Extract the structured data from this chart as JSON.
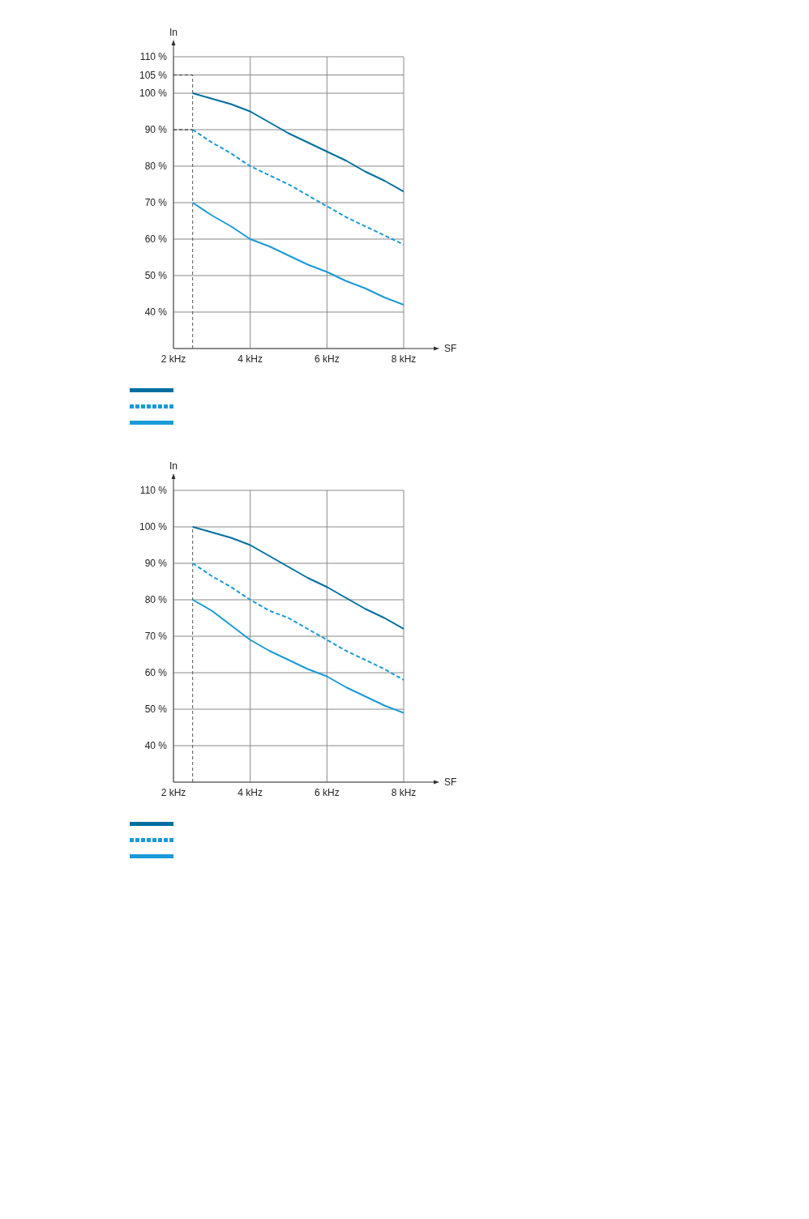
{
  "chart_data": [
    {
      "type": "line",
      "xlabel": "SF",
      "ylabel": "In",
      "x": [
        2.5,
        3,
        3.5,
        4,
        4.5,
        5,
        5.5,
        6,
        6.5,
        7,
        7.5,
        8
      ],
      "series": [
        {
          "color": "#006fa0",
          "line_style": "solid",
          "values": [
            100,
            98.5,
            97,
            95,
            92,
            89,
            86.5,
            84,
            81.5,
            78.5,
            76,
            73
          ]
        },
        {
          "color": "#1a9ad8",
          "line_style": "dashed",
          "values": [
            90,
            86.5,
            83.5,
            80,
            77.5,
            75,
            72,
            69,
            66,
            63.5,
            61,
            58.5
          ]
        },
        {
          "color": "#1a9ad8",
          "line_style": "solid",
          "values": [
            70,
            66.5,
            63.5,
            60,
            58,
            55.5,
            53,
            51,
            48.5,
            46.5,
            44,
            42
          ]
        }
      ],
      "xlim": [
        2,
        8
      ],
      "xticks": [
        {
          "value": 2,
          "label": "2 kHz"
        },
        {
          "value": 4,
          "label": "4 kHz"
        },
        {
          "value": 6,
          "label": "6 kHz"
        },
        {
          "value": 8,
          "label": "8 kHz"
        }
      ],
      "ylim": [
        30,
        110
      ],
      "yticks": [
        {
          "value": 40,
          "label": "40 %"
        },
        {
          "value": 50,
          "label": "50 %"
        },
        {
          "value": 60,
          "label": "60 %"
        },
        {
          "value": 70,
          "label": "70 %"
        },
        {
          "value": 80,
          "label": "80 %"
        },
        {
          "value": 90,
          "label": "90 %"
        },
        {
          "value": 100,
          "label": "100 %"
        },
        {
          "value": 105,
          "label": "105 %"
        },
        {
          "value": 110,
          "label": "110 %"
        }
      ],
      "ref_lines": [
        {
          "axis": "x",
          "value": 2.5,
          "color": "#555555",
          "line_style": "dashed"
        },
        {
          "axis": "y",
          "value": 105,
          "color": "#555555",
          "line_style": "dashed"
        },
        {
          "axis": "y",
          "value": 90,
          "color": "#555555",
          "line_style": "dashed"
        }
      ],
      "grid": true
    },
    {
      "type": "line",
      "xlabel": "SF",
      "ylabel": "In",
      "x": [
        2.5,
        3,
        3.5,
        4,
        4.5,
        5,
        5.5,
        6,
        6.5,
        7,
        7.5,
        8
      ],
      "series": [
        {
          "color": "#006fa0",
          "line_style": "solid",
          "values": [
            100,
            98.5,
            97,
            95,
            92,
            89,
            86,
            83.5,
            80.5,
            77.5,
            75,
            72
          ]
        },
        {
          "color": "#1a9ad8",
          "line_style": "dashed",
          "values": [
            90,
            86.5,
            83.5,
            80,
            77,
            75,
            72,
            69,
            66,
            63.5,
            61,
            58
          ]
        },
        {
          "color": "#1a9ad8",
          "line_style": "solid",
          "values": [
            80,
            77,
            73,
            69,
            66,
            63.5,
            61,
            59,
            56,
            53.5,
            51,
            49
          ]
        }
      ],
      "xlim": [
        2,
        8
      ],
      "xticks": [
        {
          "value": 2,
          "label": "2 kHz"
        },
        {
          "value": 4,
          "label": "4 kHz"
        },
        {
          "value": 6,
          "label": "6 kHz"
        },
        {
          "value": 8,
          "label": "8 kHz"
        }
      ],
      "ylim": [
        30,
        110
      ],
      "yticks": [
        {
          "value": 40,
          "label": "40 %"
        },
        {
          "value": 50,
          "label": "50 %"
        },
        {
          "value": 60,
          "label": "60 %"
        },
        {
          "value": 70,
          "label": "70 %"
        },
        {
          "value": 80,
          "label": "80 %"
        },
        {
          "value": 90,
          "label": "90 %"
        },
        {
          "value": 100,
          "label": "100 %"
        },
        {
          "value": 110,
          "label": "110 %"
        }
      ],
      "ref_lines": [
        {
          "axis": "x",
          "value": 2.5,
          "color": "#555555",
          "line_style": "dashed"
        }
      ],
      "grid": true
    }
  ]
}
